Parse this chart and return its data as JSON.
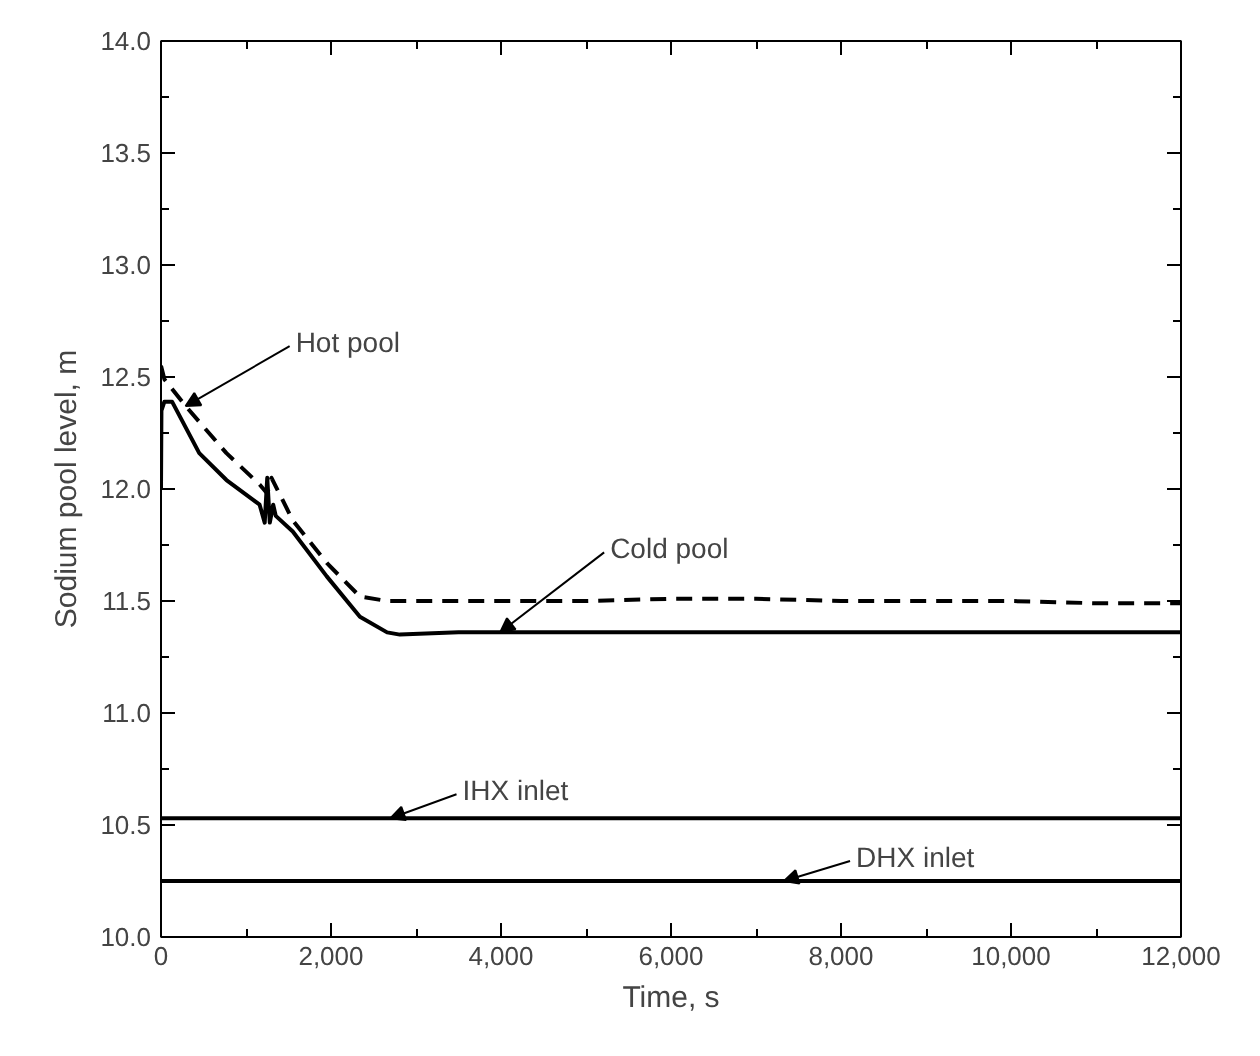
{
  "chart_data": {
    "type": "line",
    "xlabel": "Time, s",
    "ylabel": "Sodium pool level, m",
    "xlim": [
      0,
      12000
    ],
    "ylim": [
      10.0,
      14.0
    ],
    "xticks": [
      0,
      {
        "value": 2000,
        "label": "2,000"
      },
      {
        "value": 4000,
        "label": "4,000"
      },
      {
        "value": 6000,
        "label": "6,000"
      },
      {
        "value": 8000,
        "label": "8,000"
      },
      {
        "value": 10000,
        "label": "10,000"
      },
      {
        "value": 12000,
        "label": "12,000"
      }
    ],
    "yticks": [
      {
        "value": 10.0,
        "label": "10.0"
      },
      10.5,
      {
        "value": 11.0,
        "label": "11.0"
      },
      11.5,
      {
        "value": 12.0,
        "label": "12.0"
      },
      12.5,
      {
        "value": 13.0,
        "label": "13.0"
      },
      13.5,
      {
        "value": 14.0,
        "label": "14.0"
      }
    ],
    "grid": false,
    "marker": "none",
    "series": [
      {
        "color": "#000000",
        "line_style": "dashed",
        "x": [
          0,
          40,
          290,
          770,
          1160,
          1250,
          1300,
          1550,
          1950,
          2340,
          2660,
          3000,
          4000,
          5000,
          6000,
          6500,
          7000,
          8000,
          9000,
          10000,
          11000,
          12000
        ],
        "values": [
          12.55,
          12.49,
          12.37,
          12.16,
          12.02,
          11.98,
          12.05,
          11.86,
          11.67,
          11.52,
          11.5,
          11.5,
          11.5,
          11.5,
          11.51,
          11.51,
          11.51,
          11.5,
          11.5,
          11.5,
          11.49,
          11.49
        ]
      },
      {
        "color": "#000000",
        "line_style": "solid",
        "x": [
          0,
          5,
          40,
          130,
          450,
          770,
          1160,
          1220,
          1250,
          1280,
          1320,
          1350,
          1550,
          1950,
          2340,
          2660,
          2810,
          3500,
          5000,
          7000,
          9000,
          12000
        ],
        "values": [
          12.0,
          12.35,
          12.39,
          12.39,
          12.16,
          12.04,
          11.93,
          11.85,
          12.05,
          11.85,
          11.93,
          11.88,
          11.81,
          11.61,
          11.43,
          11.36,
          11.35,
          11.36,
          11.36,
          11.36,
          11.36,
          11.36
        ]
      },
      {
        "color": "#000000",
        "line_style": "solid",
        "x": [
          0,
          12000
        ],
        "values": [
          10.53,
          10.53
        ]
      },
      {
        "color": "#000000",
        "line_style": "solid",
        "x": [
          0,
          12000
        ],
        "values": [
          10.25,
          10.25
        ]
      }
    ],
    "annotations": [
      {
        "text": "Hot pool",
        "x": 290,
        "y": 12.37
      },
      {
        "text": "Cold pool",
        "x": 3990,
        "y": 11.36
      },
      {
        "text": "IHX inlet",
        "x": 2700,
        "y": 10.53
      },
      {
        "text": "DHX inlet",
        "x": 7330,
        "y": 10.25
      }
    ]
  }
}
